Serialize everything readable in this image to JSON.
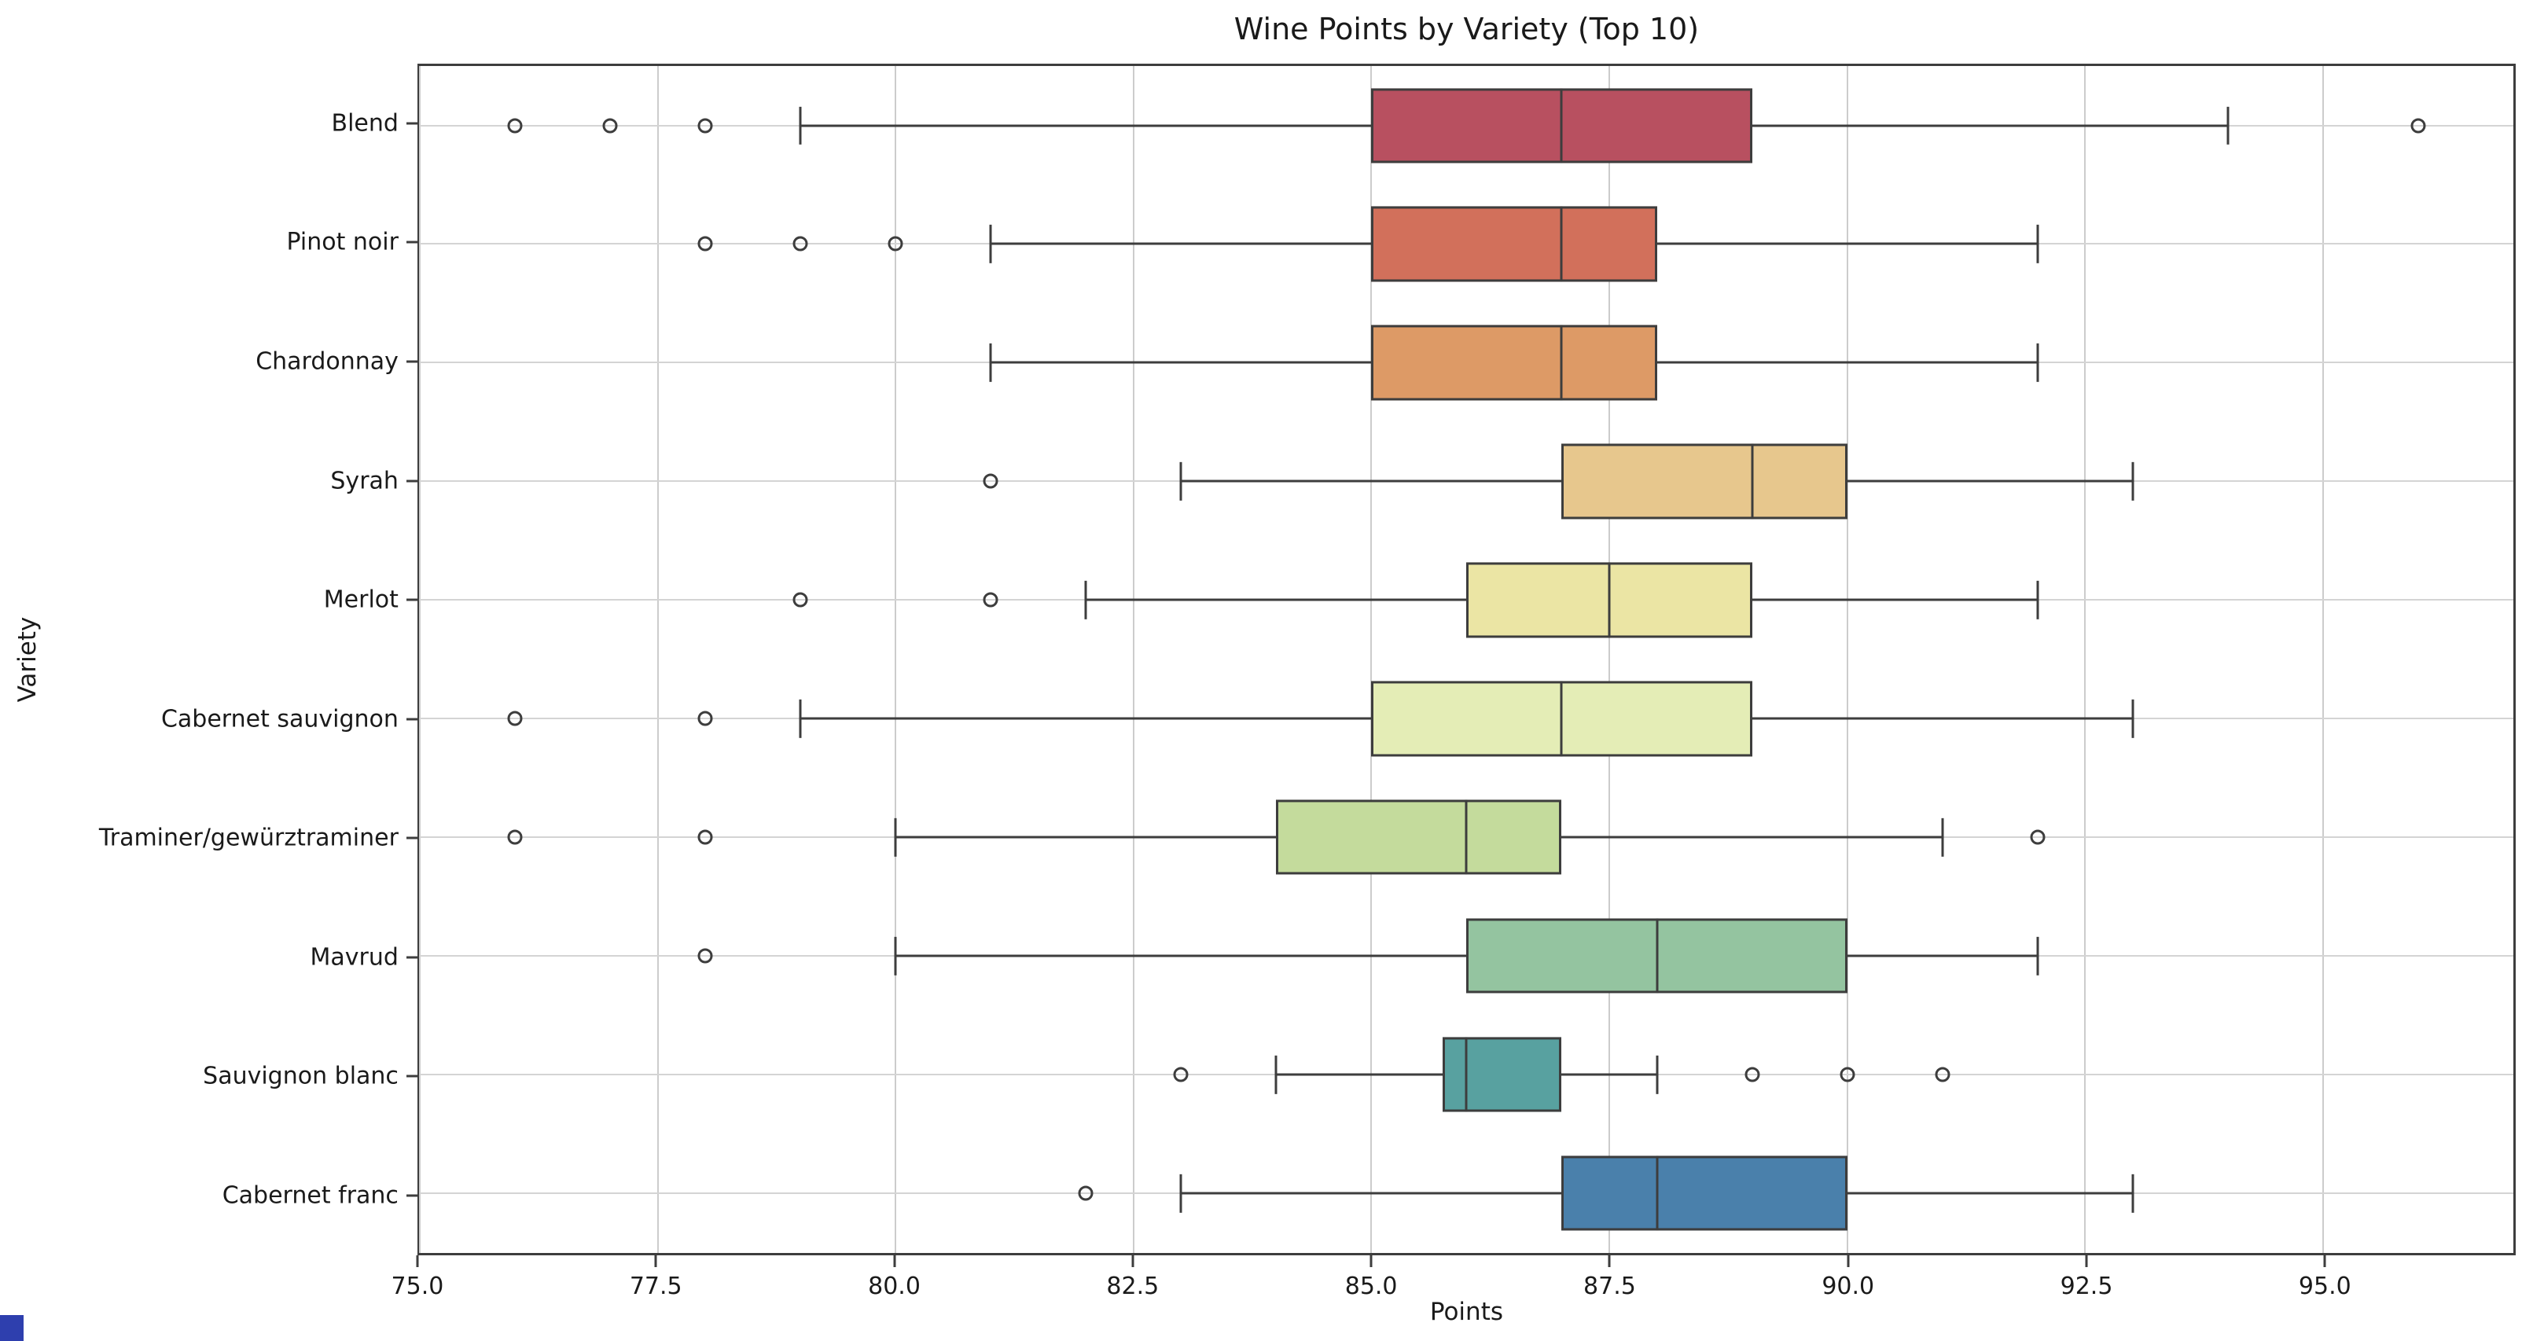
{
  "chart_data": {
    "type": "boxplot",
    "orientation": "horizontal",
    "title": "Wine Points by Variety (Top 10)",
    "xlabel": "Points",
    "ylabel": "Variety",
    "xlim": [
      75,
      97
    ],
    "x_ticks": [
      75.0,
      77.5,
      80.0,
      82.5,
      85.0,
      87.5,
      90.0,
      92.5,
      95.0
    ],
    "x_tick_labels": [
      "75.0",
      "77.5",
      "80.0",
      "82.5",
      "85.0",
      "87.5",
      "90.0",
      "92.5",
      "95.0"
    ],
    "grid": true,
    "legend": false,
    "categories": [
      "Blend",
      "Pinot noir",
      "Chardonnay",
      "Syrah",
      "Merlot",
      "Cabernet sauvignon",
      "Traminer/gewürztraminer",
      "Mavrud",
      "Sauvignon blanc",
      "Cabernet franc"
    ],
    "series": [
      {
        "label": "Blend",
        "color": "#b85060",
        "whisker_low": 79,
        "q1": 85,
        "median": 87,
        "q3": 89,
        "whisker_high": 94,
        "outliers": [
          76,
          77,
          78,
          96
        ]
      },
      {
        "label": "Pinot noir",
        "color": "#d2705b",
        "whisker_low": 81,
        "q1": 85,
        "median": 87,
        "q3": 88,
        "whisker_high": 92,
        "outliers": [
          78,
          79,
          80
        ]
      },
      {
        "label": "Chardonnay",
        "color": "#dd9a66",
        "whisker_low": 81,
        "q1": 85,
        "median": 87,
        "q3": 88,
        "whisker_high": 92,
        "outliers": []
      },
      {
        "label": "Syrah",
        "color": "#e7c78d",
        "whisker_low": 83,
        "q1": 87,
        "median": 89,
        "q3": 90,
        "whisker_high": 93,
        "outliers": [
          81
        ]
      },
      {
        "label": "Merlot",
        "color": "#ebe5a4",
        "whisker_low": 82,
        "q1": 86,
        "median": 87.5,
        "q3": 89,
        "whisker_high": 92,
        "outliers": [
          79,
          81
        ]
      },
      {
        "label": "Cabernet sauvignon",
        "color": "#e4edb6",
        "whisker_low": 79,
        "q1": 85,
        "median": 87,
        "q3": 89,
        "whisker_high": 93,
        "outliers": [
          76,
          78
        ]
      },
      {
        "label": "Traminer/gewürztraminer",
        "color": "#c4db9c",
        "whisker_low": 80,
        "q1": 84,
        "median": 86,
        "q3": 87,
        "whisker_high": 91,
        "outliers": [
          76,
          78,
          92
        ]
      },
      {
        "label": "Mavrud",
        "color": "#94c4a0",
        "whisker_low": 80,
        "q1": 86,
        "median": 88,
        "q3": 90,
        "whisker_high": 92,
        "outliers": [
          78
        ]
      },
      {
        "label": "Sauvignon blanc",
        "color": "#58a1a0",
        "whisker_low": 84,
        "q1": 85.75,
        "median": 86,
        "q3": 87,
        "whisker_high": 88,
        "outliers": [
          83,
          89,
          90,
          91
        ]
      },
      {
        "label": "Cabernet franc",
        "color": "#4a80ab",
        "whisker_low": 83,
        "q1": 87,
        "median": 88,
        "q3": 90,
        "whisker_high": 93,
        "outliers": [
          82
        ]
      }
    ],
    "colors": {
      "edge": "#3d3d3d",
      "grid": "#cccccc",
      "background": "#ffffff",
      "corner_artifact": "#2e3fae"
    }
  }
}
